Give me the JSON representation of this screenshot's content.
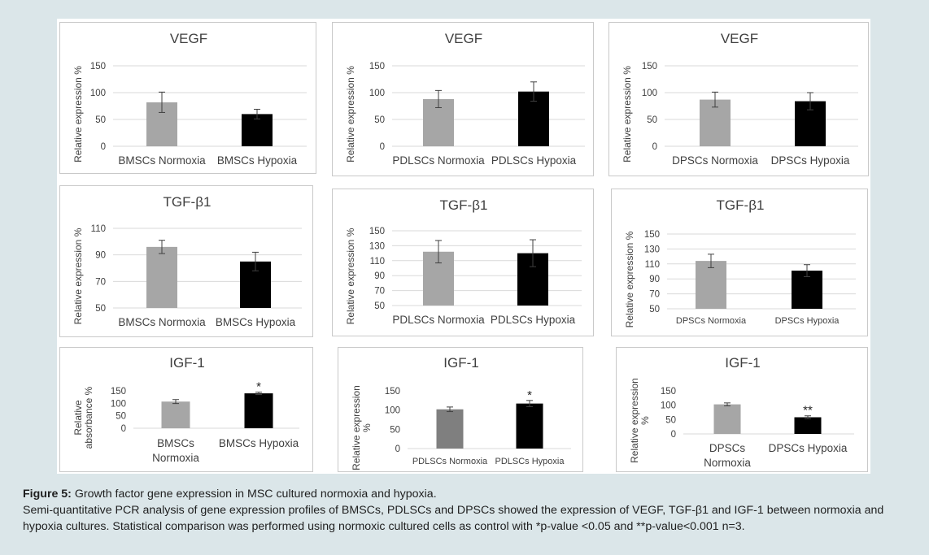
{
  "caption": {
    "label": "Figure 5:",
    "title": " Growth factor gene expression in MSC cultured normoxia and hypoxia.",
    "body": "Semi-quantitative PCR analysis of gene expression profiles of BMSCs, PDLSCs and DPSCs showed the expression of VEGF, TGF-β1 and IGF-1 between normoxia and hypoxia cultures. Statistical comparison was performed using normoxic cultured cells as control with *p-value <0.05 and **p-value<0.001 n=3."
  },
  "colors": {
    "normoxia": "#a6a6a6",
    "normoxia_dark": "#7f7f7f",
    "hypoxia": "#000000",
    "grid": "#d9d9d9",
    "text": "#404040",
    "title": "#3f3f3f"
  },
  "chart_data": [
    {
      "type": "bar",
      "title": "VEGF",
      "ylabel": "Relative expression %",
      "ylim": [
        0,
        150
      ],
      "yticks": [
        "0",
        "50",
        "100",
        "150"
      ],
      "categories": [
        "BMSCs Normoxia",
        "BMSCs Hypoxia"
      ],
      "values": [
        82,
        60
      ],
      "errors": [
        19,
        9
      ],
      "annotations": [
        "",
        ""
      ],
      "grid": true
    },
    {
      "type": "bar",
      "title": "VEGF",
      "ylabel": "Relative expression %",
      "ylim": [
        0,
        150
      ],
      "yticks": [
        "0",
        "50",
        "100",
        "150"
      ],
      "categories": [
        "PDLSCs Normoxia",
        "PDLSCs Hypoxia"
      ],
      "values": [
        88,
        102
      ],
      "errors": [
        16,
        18
      ],
      "annotations": [
        "",
        ""
      ],
      "grid": true
    },
    {
      "type": "bar",
      "title": "VEGF",
      "ylabel": "Relative expression %",
      "ylim": [
        0,
        150
      ],
      "yticks": [
        "0",
        "50",
        "100",
        "150"
      ],
      "categories": [
        "DPSCs Normoxia",
        "DPSCs Hypoxia"
      ],
      "values": [
        87,
        84
      ],
      "errors": [
        14,
        16
      ],
      "annotations": [
        "",
        ""
      ],
      "grid": true
    },
    {
      "type": "bar",
      "title": "TGF-β1",
      "ylabel": "Relative expression %",
      "ylim": [
        50,
        110
      ],
      "yticks": [
        "50",
        "70",
        "90",
        "110"
      ],
      "categories": [
        "BMSCs Normoxia",
        "BMSCs Hypoxia"
      ],
      "values": [
        96,
        85
      ],
      "errors": [
        5,
        7
      ],
      "annotations": [
        "",
        ""
      ],
      "grid": true
    },
    {
      "type": "bar",
      "title": "TGF-β1",
      "ylabel": "Relative expression %",
      "ylim": [
        50,
        150
      ],
      "yticks": [
        "50",
        "70",
        "90",
        "110",
        "130",
        "150"
      ],
      "categories": [
        "PDLSCs Normoxia",
        "PDLSCs Hypoxia"
      ],
      "values": [
        122,
        120
      ],
      "errors": [
        15,
        18
      ],
      "annotations": [
        "",
        ""
      ],
      "grid": true
    },
    {
      "type": "bar",
      "title": "TGF-β1",
      "ylabel": "Relative expression %",
      "ylim": [
        50,
        150
      ],
      "yticks": [
        "50",
        "70",
        "90",
        "110",
        "130",
        "150"
      ],
      "categories": [
        "DPSCs Normoxia",
        "DPSCs Hypoxia"
      ],
      "values": [
        114,
        101
      ],
      "errors": [
        9,
        8
      ],
      "annotations": [
        "",
        ""
      ],
      "grid": true
    },
    {
      "type": "bar",
      "title": "IGF-1",
      "ylabel": "Relative absorbance %",
      "ylim": [
        0,
        150
      ],
      "yticks": [
        "0",
        "50",
        "100",
        "150"
      ],
      "categories": [
        "BMSCs Normoxia",
        "BMSCs Hypoxia"
      ],
      "values": [
        107,
        140
      ],
      "errors": [
        8,
        5
      ],
      "annotations": [
        "",
        "*"
      ],
      "grid": false
    },
    {
      "type": "bar",
      "title": "IGF-1",
      "ylabel": "Relative expression %",
      "ylim": [
        0,
        150
      ],
      "yticks": [
        "0",
        "50",
        "100",
        "150"
      ],
      "categories": [
        "PDLSCs Normoxia",
        "PDLSCs Hypoxia"
      ],
      "values": [
        102,
        117
      ],
      "errors": [
        6,
        8
      ],
      "annotations": [
        "",
        "*"
      ],
      "grid": false
    },
    {
      "type": "bar",
      "title": "IGF-1",
      "ylabel": "Relative expression %",
      "ylim": [
        0,
        150
      ],
      "yticks": [
        "0",
        "50",
        "100",
        "150"
      ],
      "categories": [
        "DPSCs Normoxia",
        "DPSCs Hypoxia"
      ],
      "values": [
        103,
        58
      ],
      "errors": [
        5,
        5
      ],
      "annotations": [
        "",
        "**"
      ],
      "grid": false
    }
  ]
}
